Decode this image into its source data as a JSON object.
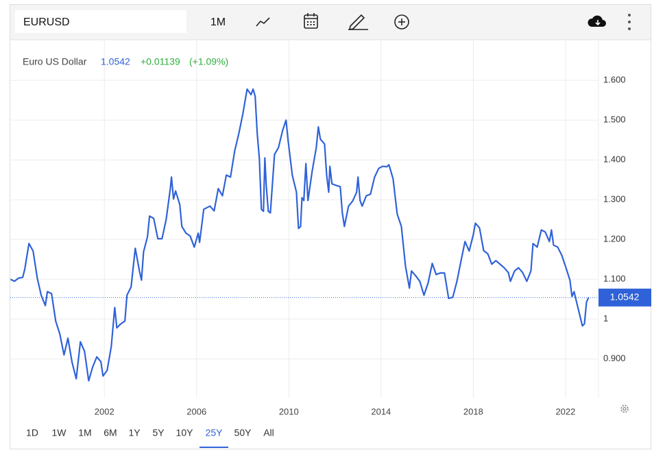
{
  "toolbar": {
    "symbol": "EURUSD",
    "interval": "1M"
  },
  "ranges": [
    "1D",
    "1W",
    "1M",
    "6M",
    "1Y",
    "5Y",
    "10Y",
    "25Y",
    "50Y",
    "All"
  ],
  "selected_range": "25Y",
  "chart_data": {
    "type": "line",
    "title": "Euro US Dollar",
    "price": "1.0542",
    "change": "+0.01139",
    "change_pct": "(+1.09%)",
    "color": "#2f62d8",
    "grid": true,
    "last_value": 1.0542,
    "xlim": [
      1997.92,
      2023.43
    ],
    "ylim": [
      0.802,
      1.702
    ],
    "xticks": [
      2002,
      2006,
      2010,
      2014,
      2018,
      2022
    ],
    "yticks": [
      {
        "value": 0.9,
        "label": "0.900"
      },
      1,
      {
        "value": 1.1,
        "label": "1.100"
      },
      {
        "value": 1.2,
        "label": "1.200"
      },
      {
        "value": 1.3,
        "label": "1.300"
      },
      {
        "value": 1.4,
        "label": "1.400"
      },
      {
        "value": 1.5,
        "label": "1.500"
      },
      {
        "value": 1.6,
        "label": "1.600"
      }
    ],
    "x": [
      1997.93,
      1998.1,
      1998.28,
      1998.46,
      1998.55,
      1998.73,
      1998.91,
      1999.09,
      1999.26,
      1999.44,
      1999.53,
      1999.71,
      1999.89,
      2000.07,
      2000.25,
      2000.42,
      2000.6,
      2000.78,
      2000.96,
      2001.14,
      2001.32,
      2001.49,
      2001.67,
      2001.85,
      2001.94,
      2002.12,
      2002.3,
      2002.45,
      2002.54,
      2002.71,
      2002.89,
      2002.98,
      2003.16,
      2003.34,
      2003.52,
      2003.61,
      2003.7,
      2003.87,
      2003.96,
      2004.14,
      2004.32,
      2004.5,
      2004.68,
      2004.86,
      2004.91,
      2005.0,
      2005.09,
      2005.27,
      2005.36,
      2005.54,
      2005.72,
      2005.9,
      2006.07,
      2006.13,
      2006.31,
      2006.58,
      2006.76,
      2006.94,
      2007.12,
      2007.29,
      2007.47,
      2007.65,
      2007.83,
      2008.01,
      2008.19,
      2008.36,
      2008.45,
      2008.54,
      2008.63,
      2008.72,
      2008.81,
      2008.9,
      2008.96,
      2009.02,
      2009.11,
      2009.2,
      2009.38,
      2009.55,
      2009.73,
      2009.88,
      2009.97,
      2010.15,
      2010.33,
      2010.42,
      2010.51,
      2010.57,
      2010.65,
      2010.74,
      2010.83,
      2011.01,
      2011.19,
      2011.28,
      2011.37,
      2011.55,
      2011.64,
      2011.73,
      2011.78,
      2011.87,
      2012.05,
      2012.23,
      2012.32,
      2012.41,
      2012.59,
      2012.77,
      2012.94,
      2013.0,
      2013.09,
      2013.18,
      2013.36,
      2013.54,
      2013.72,
      2013.9,
      2014.07,
      2014.25,
      2014.34,
      2014.52,
      2014.7,
      2014.88,
      2015.06,
      2015.23,
      2015.32,
      2015.5,
      2015.68,
      2015.86,
      2016.04,
      2016.22,
      2016.39,
      2016.57,
      2016.75,
      2016.93,
      2017.11,
      2017.29,
      2017.47,
      2017.64,
      2017.82,
      2018.0,
      2018.09,
      2018.27,
      2018.45,
      2018.63,
      2018.8,
      2018.98,
      2019.16,
      2019.34,
      2019.52,
      2019.61,
      2019.79,
      2019.96,
      2020.14,
      2020.32,
      2020.5,
      2020.59,
      2020.77,
      2020.95,
      2021.12,
      2021.3,
      2021.39,
      2021.48,
      2021.66,
      2021.84,
      2022.02,
      2022.19,
      2022.28,
      2022.37,
      2022.55,
      2022.73,
      2022.82,
      2022.91,
      2023.0
    ],
    "values": [
      1.1,
      1.095,
      1.103,
      1.105,
      1.126,
      1.19,
      1.171,
      1.103,
      1.06,
      1.034,
      1.069,
      1.064,
      0.995,
      0.962,
      0.91,
      0.952,
      0.891,
      0.85,
      0.943,
      0.919,
      0.845,
      0.879,
      0.905,
      0.893,
      0.857,
      0.871,
      0.931,
      1.029,
      0.978,
      0.988,
      0.995,
      1.06,
      1.081,
      1.178,
      1.121,
      1.098,
      1.169,
      1.207,
      1.259,
      1.253,
      1.202,
      1.202,
      1.25,
      1.328,
      1.357,
      1.302,
      1.322,
      1.288,
      1.233,
      1.216,
      1.209,
      1.181,
      1.216,
      1.193,
      1.276,
      1.284,
      1.272,
      1.328,
      1.31,
      1.362,
      1.357,
      1.422,
      1.466,
      1.517,
      1.578,
      1.564,
      1.578,
      1.56,
      1.466,
      1.405,
      1.276,
      1.271,
      1.405,
      1.336,
      1.271,
      1.267,
      1.414,
      1.431,
      1.474,
      1.5,
      1.448,
      1.362,
      1.319,
      1.228,
      1.233,
      1.305,
      1.298,
      1.391,
      1.298,
      1.371,
      1.431,
      1.483,
      1.452,
      1.44,
      1.362,
      1.319,
      1.384,
      1.34,
      1.336,
      1.333,
      1.267,
      1.233,
      1.284,
      1.297,
      1.319,
      1.357,
      1.298,
      1.284,
      1.31,
      1.314,
      1.357,
      1.379,
      1.384,
      1.383,
      1.388,
      1.353,
      1.264,
      1.233,
      1.133,
      1.078,
      1.121,
      1.109,
      1.095,
      1.06,
      1.091,
      1.14,
      1.112,
      1.116,
      1.116,
      1.052,
      1.055,
      1.095,
      1.147,
      1.195,
      1.171,
      1.212,
      1.241,
      1.229,
      1.172,
      1.164,
      1.138,
      1.147,
      1.138,
      1.129,
      1.117,
      1.095,
      1.121,
      1.129,
      1.117,
      1.095,
      1.121,
      1.19,
      1.181,
      1.224,
      1.219,
      1.195,
      1.224,
      1.186,
      1.181,
      1.16,
      1.129,
      1.098,
      1.057,
      1.069,
      1.026,
      0.983,
      0.988,
      1.043,
      1.0542
    ]
  }
}
